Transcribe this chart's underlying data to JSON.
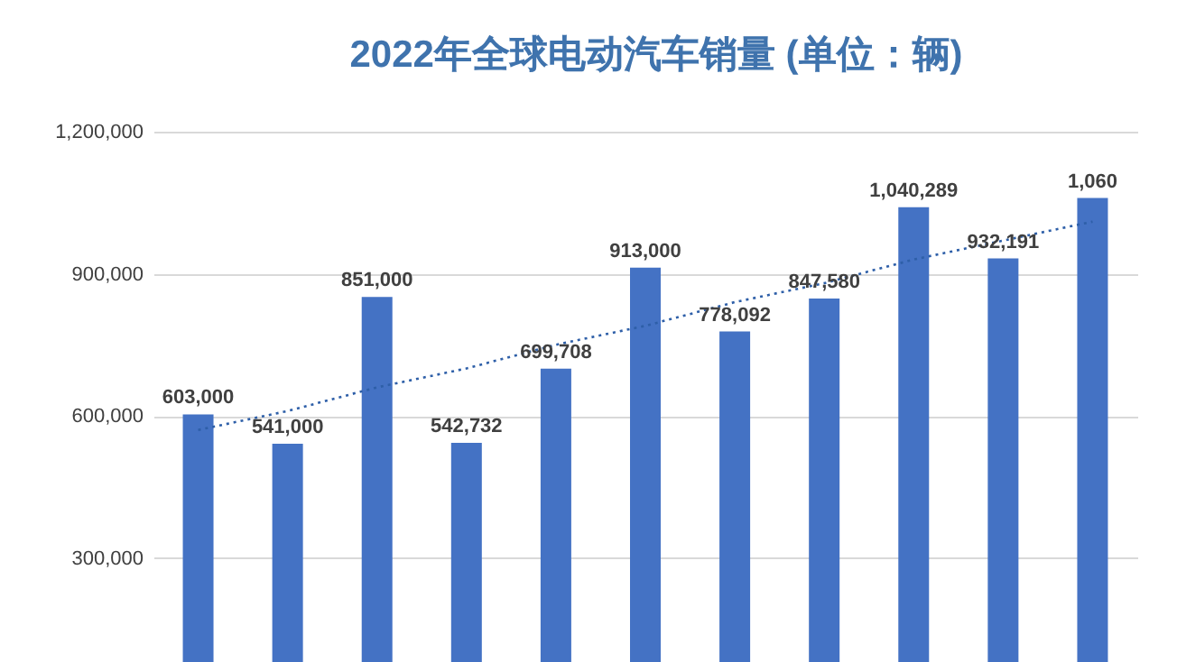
{
  "chart_data": {
    "type": "bar",
    "title": "2022年全球电动汽车销量 (单位：辆)",
    "categories": [
      null,
      null,
      null,
      null,
      null,
      null,
      null,
      null,
      null,
      null,
      null
    ],
    "series": [
      {
        "color": "#4472c4",
        "values": [
          603000,
          541000,
          851000,
          542732,
          699708,
          913000,
          778092,
          847580,
          1040289,
          932191,
          1060000
        ],
        "value_labels": [
          "603,000",
          "541,000",
          "851,000",
          "542,732",
          "699,708",
          "913,000",
          "778,092",
          "847,580",
          "1,040,289",
          "932,191",
          null
        ]
      },
      {
        "type": "line",
        "color": "#2e5fa8",
        "line_style": "dotted",
        "marker": "none",
        "values": [
          570000,
          610000,
          660000,
          700000,
          750000,
          790000,
          840000,
          880000,
          930000,
          970000,
          1010000
        ]
      }
    ],
    "annotations": [
      "1,060"
    ],
    "ylim": [
      80000,
      1200000
    ],
    "yticks": [
      {
        "value": 300000,
        "label": "300,000"
      },
      {
        "value": 600000,
        "label": "600,000"
      },
      {
        "value": 900000,
        "label": "900,000"
      },
      {
        "value": 1200000,
        "label": "1,200,000"
      }
    ],
    "grid": "y",
    "tick_labels": "y"
  }
}
